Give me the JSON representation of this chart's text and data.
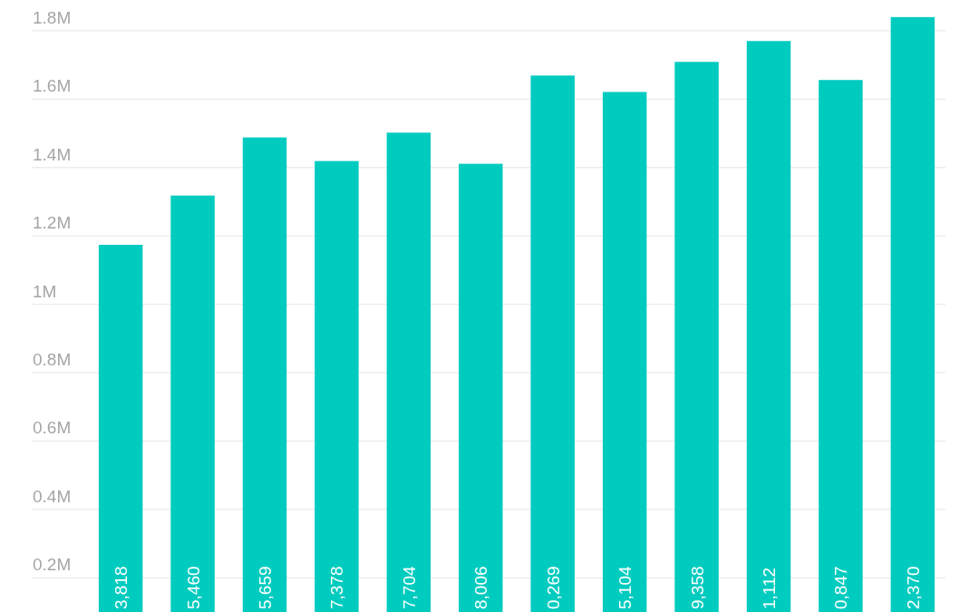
{
  "chart_data": {
    "type": "bar",
    "categories": [
      null,
      null,
      null,
      null,
      null,
      null,
      null,
      null,
      null,
      null,
      null,
      null
    ],
    "values": [
      1174000,
      1318000,
      1488000,
      1419000,
      1502000,
      1411000,
      1669000,
      1621000,
      1709000,
      1770000,
      1656000,
      1840000
    ],
    "annotations": [
      "3,818",
      "5,460",
      "5,659",
      "7,378",
      "7,704",
      "8,006",
      "0,269",
      "5,104",
      "9,358",
      "1,112",
      "0,847",
      "2,370"
    ],
    "color": "#00cbbf",
    "ylim": [
      100000,
      1890000
    ],
    "yticks": [
      {
        "value": 200000,
        "label": "0.2M"
      },
      {
        "value": 400000,
        "label": "0.4M"
      },
      {
        "value": 600000,
        "label": "0.6M"
      },
      {
        "value": 800000,
        "label": "0.8M"
      },
      {
        "value": 1000000,
        "label": "1M"
      },
      {
        "value": 1200000,
        "label": "1.2M"
      },
      {
        "value": 1400000,
        "label": "1.4M"
      },
      {
        "value": 1600000,
        "label": "1.6M"
      },
      {
        "value": 1800000,
        "label": "1.8M"
      }
    ],
    "grid": true
  }
}
